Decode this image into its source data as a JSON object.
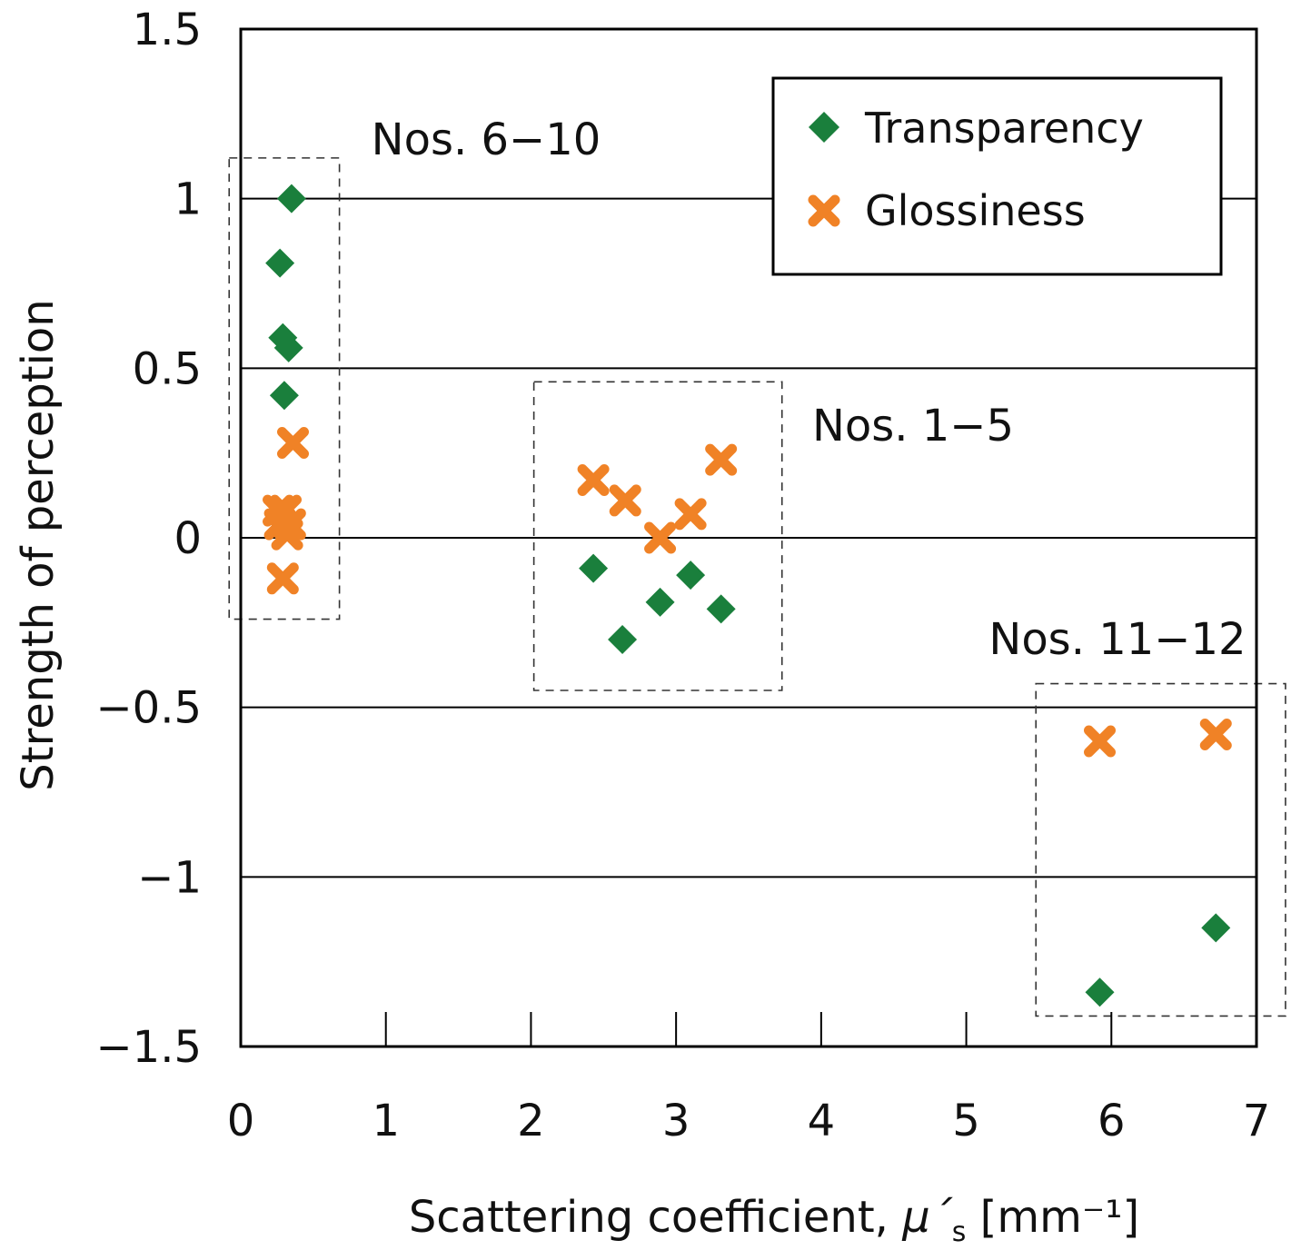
{
  "chart_data": {
    "type": "scatter",
    "title": "",
    "xlabel": "Scattering coefficient, μ´s [mm⁻¹]",
    "xlabel_main": "Scattering coefficient, ",
    "xlabel_symbol": "μ´",
    "xlabel_sub": "s",
    "xlabel_unit": " [mm⁻¹]",
    "ylabel": "Strength of perception",
    "xlim": [
      0,
      7
    ],
    "ylim": [
      -1.5,
      1.5
    ],
    "x_ticks": [
      0,
      1,
      2,
      3,
      4,
      5,
      6,
      7
    ],
    "x_tick_labels": [
      "0",
      "1",
      "2",
      "3",
      "4",
      "5",
      "6",
      "7"
    ],
    "y_ticks": [
      1.5,
      1,
      0.5,
      0,
      -0.5,
      -1,
      -1.5
    ],
    "y_tick_labels": [
      "1.5",
      "1",
      "0.5",
      "0",
      "−0.5",
      "−1",
      "−1.5"
    ],
    "gridlines_y": [
      1,
      0.5,
      0,
      -0.5,
      -1
    ],
    "legend_position": "top-right",
    "series": [
      {
        "name": "Transparency",
        "marker": "diamond",
        "color": "#1a7f3c",
        "points": [
          [
            0.35,
            1.0
          ],
          [
            0.27,
            0.81
          ],
          [
            0.29,
            0.59
          ],
          [
            0.33,
            0.56
          ],
          [
            0.3,
            0.42
          ],
          [
            2.43,
            -0.09
          ],
          [
            2.63,
            -0.3
          ],
          [
            2.89,
            -0.19
          ],
          [
            3.1,
            -0.11
          ],
          [
            3.31,
            -0.21
          ],
          [
            5.92,
            -1.34
          ],
          [
            6.72,
            -1.15
          ]
        ]
      },
      {
        "name": "Glossiness",
        "marker": "x",
        "color": "#f08226",
        "points": [
          [
            0.36,
            0.28
          ],
          [
            0.26,
            0.08
          ],
          [
            0.31,
            0.08
          ],
          [
            0.27,
            0.04
          ],
          [
            0.34,
            0.04
          ],
          [
            0.32,
            0.01
          ],
          [
            0.29,
            -0.12
          ],
          [
            2.43,
            0.17
          ],
          [
            2.65,
            0.11
          ],
          [
            2.89,
            0.0
          ],
          [
            3.1,
            0.07
          ],
          [
            3.31,
            0.23
          ],
          [
            5.92,
            -0.6
          ],
          [
            6.72,
            -0.58
          ]
        ]
      }
    ],
    "groups": [
      {
        "label": "Nos. 6−10",
        "x_range": [
          -0.08,
          0.68
        ],
        "y_range": [
          -0.24,
          1.12
        ]
      },
      {
        "label": "Nos. 1−5",
        "x_range": [
          2.02,
          3.73
        ],
        "y_range": [
          -0.45,
          0.46
        ]
      },
      {
        "label": "Nos. 11−12",
        "x_range": [
          5.48,
          7.2
        ],
        "y_range": [
          -1.41,
          -0.43
        ]
      }
    ]
  }
}
